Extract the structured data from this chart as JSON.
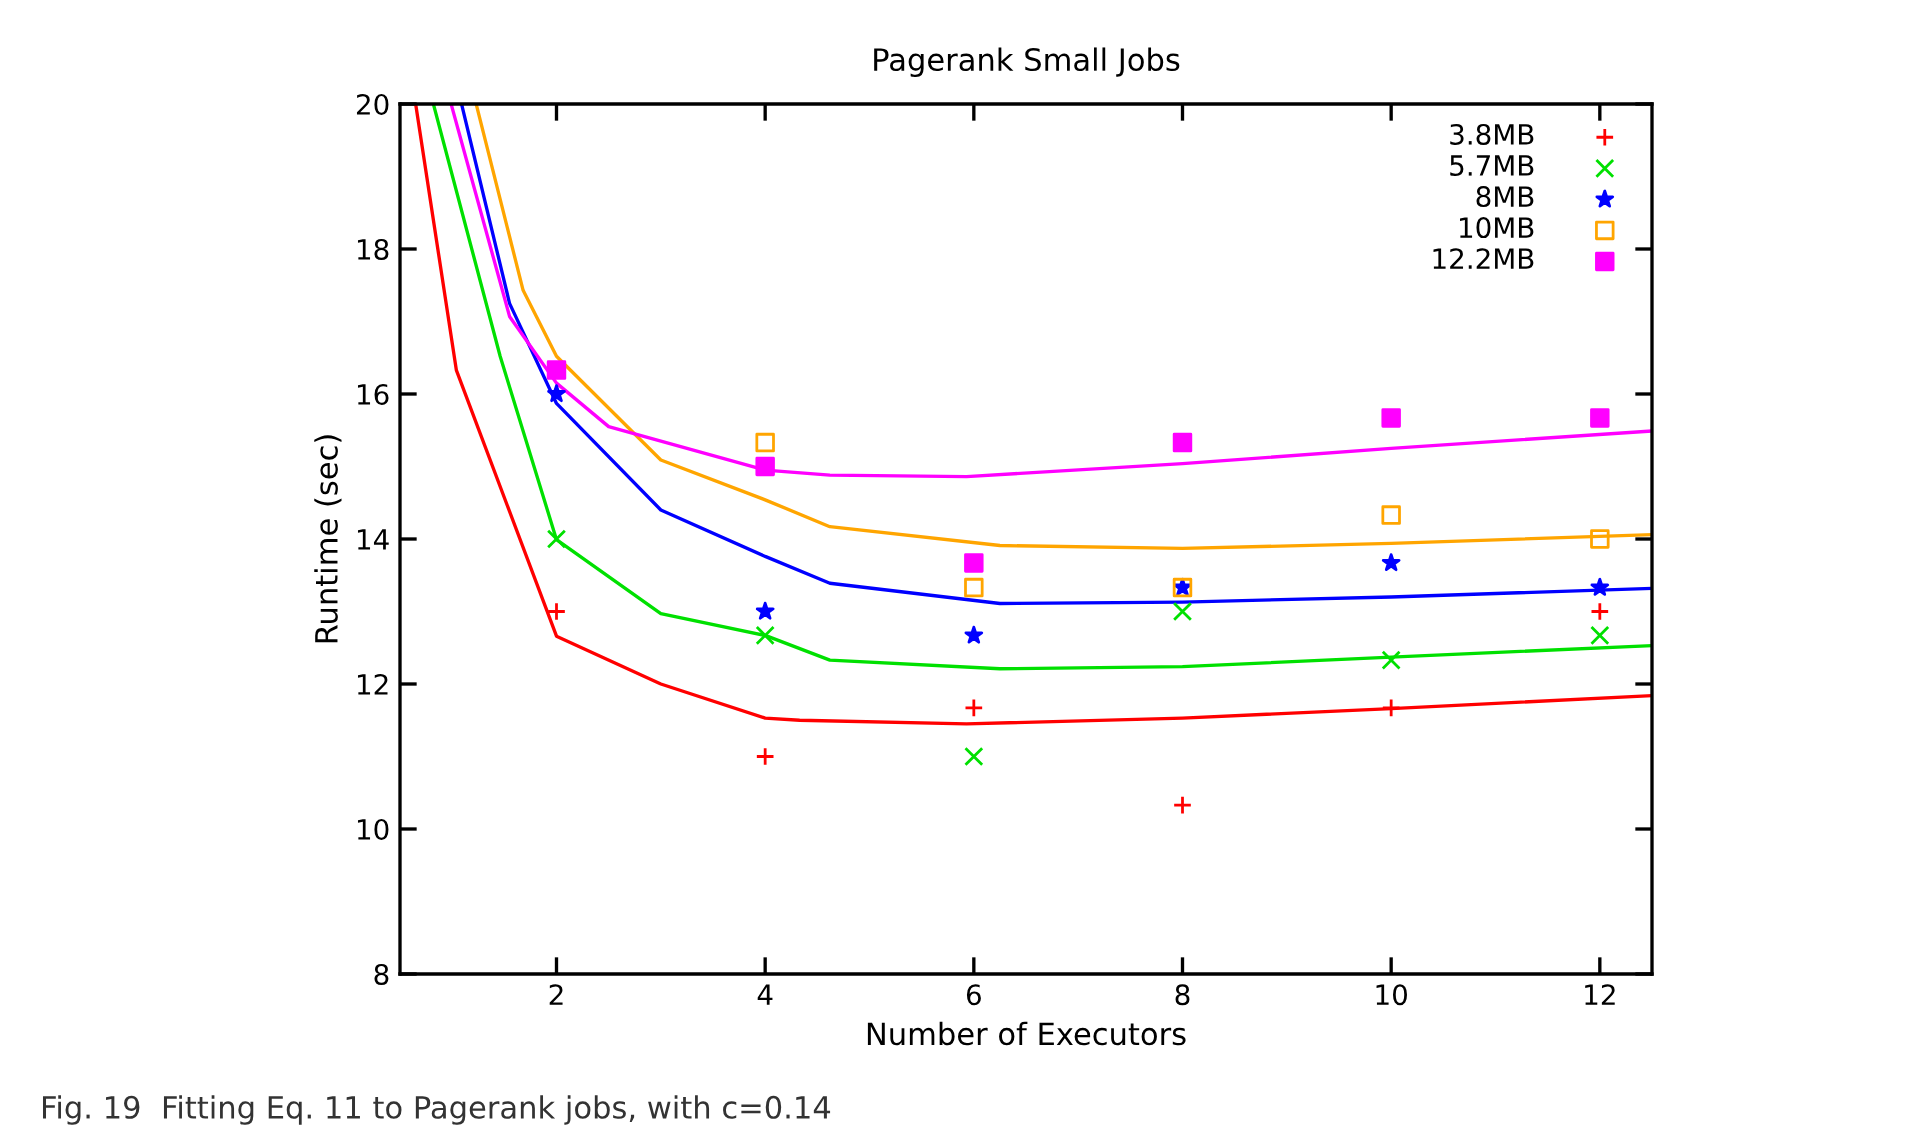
{
  "chart_data": {
    "type": "scatter",
    "title": "Pagerank Small Jobs",
    "xlabel": "Number of Executors",
    "ylabel": "Runtime (sec)",
    "xlim": [
      0.5,
      12.5
    ],
    "ylim": [
      8,
      20
    ],
    "xticks": [
      2,
      4,
      6,
      8,
      10,
      12
    ],
    "yticks": [
      8,
      10,
      12,
      14,
      16,
      18,
      20
    ],
    "grid": false,
    "legend": "top right",
    "x": [
      2,
      4,
      6,
      8,
      10,
      12
    ],
    "series": [
      {
        "name": "3.8MB",
        "color": "#ff0000",
        "marker": "plus",
        "values": [
          13.0,
          11.0,
          11.67,
          10.33,
          11.67,
          13.0
        ]
      },
      {
        "name": "5.7MB",
        "color": "#00e000",
        "marker": "cross",
        "values": [
          14.0,
          12.67,
          11.0,
          13.0,
          12.33,
          12.67
        ]
      },
      {
        "name": "8MB",
        "color": "#0000ff",
        "marker": "star",
        "values": [
          16.0,
          13.0,
          12.67,
          13.33,
          13.67,
          13.33
        ]
      },
      {
        "name": "10MB",
        "color": "#ffa500",
        "marker": "square_open",
        "values": [
          null,
          15.33,
          13.33,
          13.33,
          14.33,
          14.0
        ]
      },
      {
        "name": "12.2MB",
        "color": "#ff00ff",
        "marker": "square",
        "values": [
          16.33,
          15.0,
          13.67,
          15.33,
          15.67,
          15.67
        ]
      },
      {
        "type": "line",
        "color": "#ff0000",
        "marker": "none",
        "x": [
          0.65,
          1.04,
          2,
          3,
          4,
          4.33,
          5.93,
          8,
          10,
          12.5
        ],
        "values": [
          20,
          16.33,
          12.66,
          12.0,
          11.53,
          11.5,
          11.45,
          11.53,
          11.66,
          11.84
        ]
      },
      {
        "type": "line",
        "color": "#00e000",
        "marker": "none",
        "x": [
          0.82,
          1.46,
          2,
          3,
          4,
          4.62,
          6.25,
          8,
          10,
          12.5
        ],
        "values": [
          20,
          16.52,
          13.99,
          12.97,
          12.67,
          12.33,
          12.21,
          12.24,
          12.37,
          12.53
        ]
      },
      {
        "type": "line",
        "color": "#0000ff",
        "marker": "none",
        "x": [
          1.09,
          1.55,
          2,
          3,
          4,
          4.62,
          6.25,
          8,
          10,
          12.5
        ],
        "values": [
          20,
          17.25,
          15.87,
          14.4,
          13.76,
          13.39,
          13.11,
          13.13,
          13.2,
          13.32
        ]
      },
      {
        "type": "line",
        "color": "#ffa500",
        "marker": "none",
        "x": [
          1.23,
          1.68,
          2,
          3,
          4,
          4.62,
          6.25,
          8,
          10,
          12.5
        ],
        "values": [
          20,
          17.43,
          16.52,
          15.09,
          14.54,
          14.17,
          13.91,
          13.87,
          13.94,
          14.06
        ]
      },
      {
        "type": "line",
        "color": "#ff00ff",
        "marker": "none",
        "x": [
          0.99,
          1.55,
          2,
          2.5,
          4,
          4.62,
          5.93,
          8,
          10,
          12.5
        ],
        "values": [
          20,
          17.07,
          16.15,
          15.55,
          14.95,
          14.88,
          14.86,
          15.04,
          15.25,
          15.49
        ]
      }
    ],
    "annotations": [
      "Fig. 19  Fitting Eq. 11 to Pagerank jobs, with c=0.14"
    ]
  }
}
